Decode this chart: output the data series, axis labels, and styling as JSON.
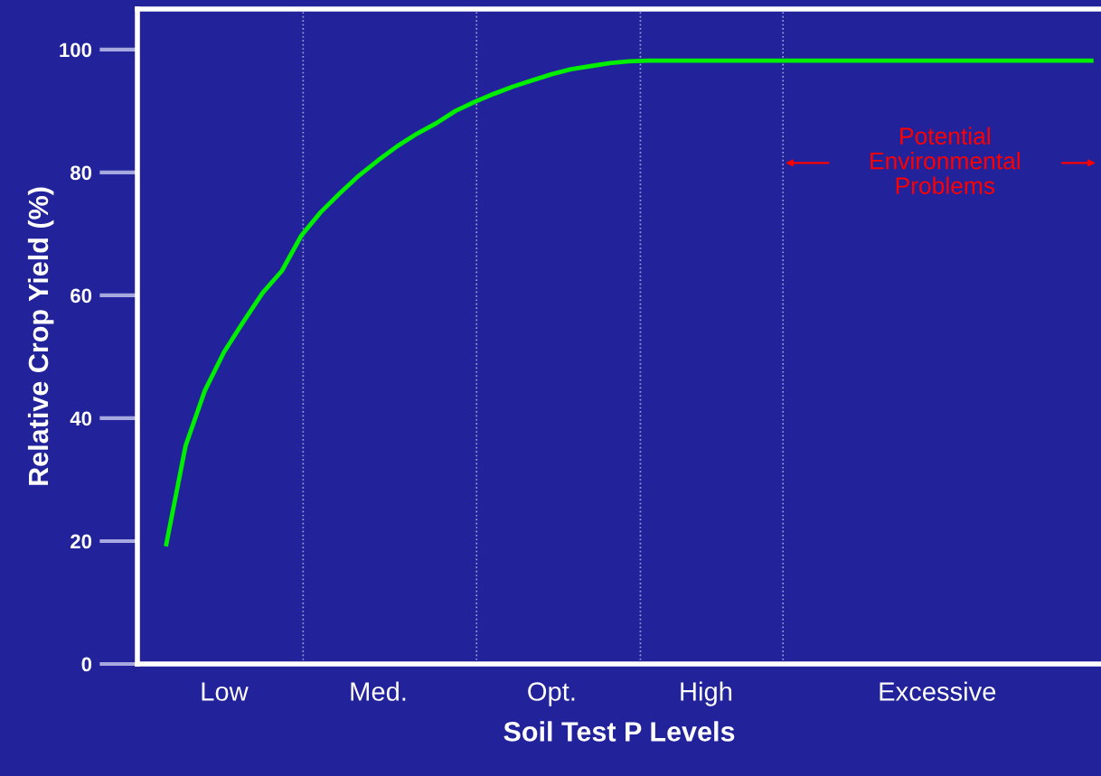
{
  "chart_data": {
    "type": "line",
    "xlabel": "Soil Test P Levels",
    "ylabel": "Relative Crop Yield (%)",
    "categories": [
      null,
      null,
      null,
      null,
      "Low",
      null,
      null,
      null,
      null,
      null,
      null,
      null,
      "Med.",
      null,
      null,
      null,
      null,
      null,
      null,
      null,
      null,
      "Opt.",
      null,
      null,
      null,
      null,
      null,
      null,
      null,
      "High",
      null,
      null,
      null,
      null,
      null,
      null,
      null,
      null,
      null,
      null,
      null,
      "Excessive",
      null,
      null,
      null,
      null,
      null,
      null,
      null,
      null
    ],
    "series": [
      {
        "color": "#00ee00",
        "values": [
          null,
          19.5,
          35.5,
          44.5,
          50.8,
          55.7,
          60.4,
          64,
          69.7,
          73.5,
          76.6,
          79.5,
          82,
          84.3,
          86.3,
          88,
          90,
          91.5,
          92.8,
          94,
          95,
          96,
          96.8,
          97.3,
          97.8,
          98.1,
          98.2,
          98.2,
          98.2,
          98.2,
          98.2,
          98.2,
          98.2,
          98.2,
          98.2,
          98.2,
          98.2,
          98.2,
          98.2,
          98.2,
          98.2,
          98.2,
          98.2,
          98.2,
          98.2,
          98.2,
          98.2,
          98.2,
          98.2,
          98.2
        ]
      }
    ],
    "ylim": [
      0,
      106.6
    ],
    "yticks": [
      0,
      20,
      40,
      60,
      80,
      100
    ],
    "annotations": [
      "Potential\nEnvironmental\nProblems"
    ],
    "grid": "x",
    "legend": false,
    "marker": "none",
    "line_style": "solid"
  }
}
